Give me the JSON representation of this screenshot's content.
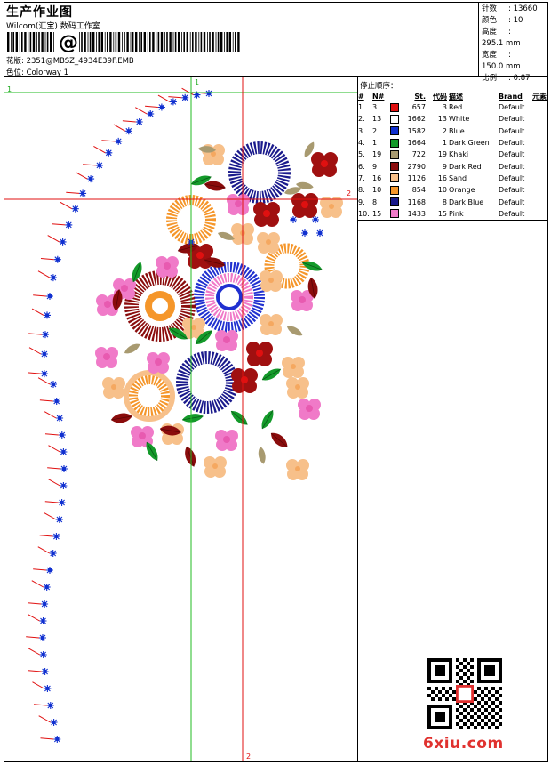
{
  "header": {
    "title": "生产作业图",
    "subtitle": "Wilcom(汇宝) 数码工作室",
    "design_label": "花版: 2351@MBSZ_4934E39F.EMB",
    "colorway_label": "色位: Colorway 1"
  },
  "stats": [
    {
      "label": "针数",
      "value": "13660"
    },
    {
      "label": "颜色",
      "value": "10"
    },
    {
      "label": "高度",
      "value": "295.1 mm"
    },
    {
      "label": "宽度",
      "value": "150.0 mm"
    },
    {
      "label": "比例",
      "value": "0.87"
    }
  ],
  "sequence": {
    "title": "停止顺序：",
    "headers": [
      "#",
      "N#",
      "St.",
      "代码",
      "描述",
      "Brand",
      "元素"
    ],
    "rows": [
      {
        "idx": "1.",
        "n": "3",
        "color": "#e01010",
        "st": "657",
        "code": "3",
        "desc": "Red",
        "brand": "Default"
      },
      {
        "idx": "2.",
        "n": "13",
        "color": "#ffffff",
        "st": "1662",
        "code": "13",
        "desc": "White",
        "brand": "Default"
      },
      {
        "idx": "3.",
        "n": "2",
        "color": "#1030d0",
        "st": "1582",
        "code": "2",
        "desc": "Blue",
        "brand": "Default"
      },
      {
        "idx": "4.",
        "n": "1",
        "color": "#149a2a",
        "st": "1664",
        "code": "1",
        "desc": "Dark Green",
        "brand": "Default"
      },
      {
        "idx": "5.",
        "n": "19",
        "color": "#a89a70",
        "st": "722",
        "code": "19",
        "desc": "Khaki",
        "brand": "Default"
      },
      {
        "idx": "6.",
        "n": "9",
        "color": "#8a0c0c",
        "st": "2790",
        "code": "9",
        "desc": "Dark Red",
        "brand": "Default"
      },
      {
        "idx": "7.",
        "n": "16",
        "color": "#f7c08a",
        "st": "1126",
        "code": "16",
        "desc": "Sand",
        "brand": "Default"
      },
      {
        "idx": "8.",
        "n": "10",
        "color": "#f5962a",
        "st": "854",
        "code": "10",
        "desc": "Orange",
        "brand": "Default"
      },
      {
        "idx": "9.",
        "n": "8",
        "color": "#1a1a8c",
        "st": "1168",
        "code": "8",
        "desc": "Dark Blue",
        "brand": "Default"
      },
      {
        "idx": "10.",
        "n": "15",
        "color": "#f07ac8",
        "st": "1433",
        "code": "15",
        "desc": "Pink",
        "brand": "Default"
      }
    ]
  },
  "guides": {
    "green_h_label": "1",
    "green_v_label": "1",
    "red_h_label": "2",
    "red_v_label": "2"
  },
  "watermark": {
    "text": "6xiu.com",
    "color": "#e0322f"
  }
}
